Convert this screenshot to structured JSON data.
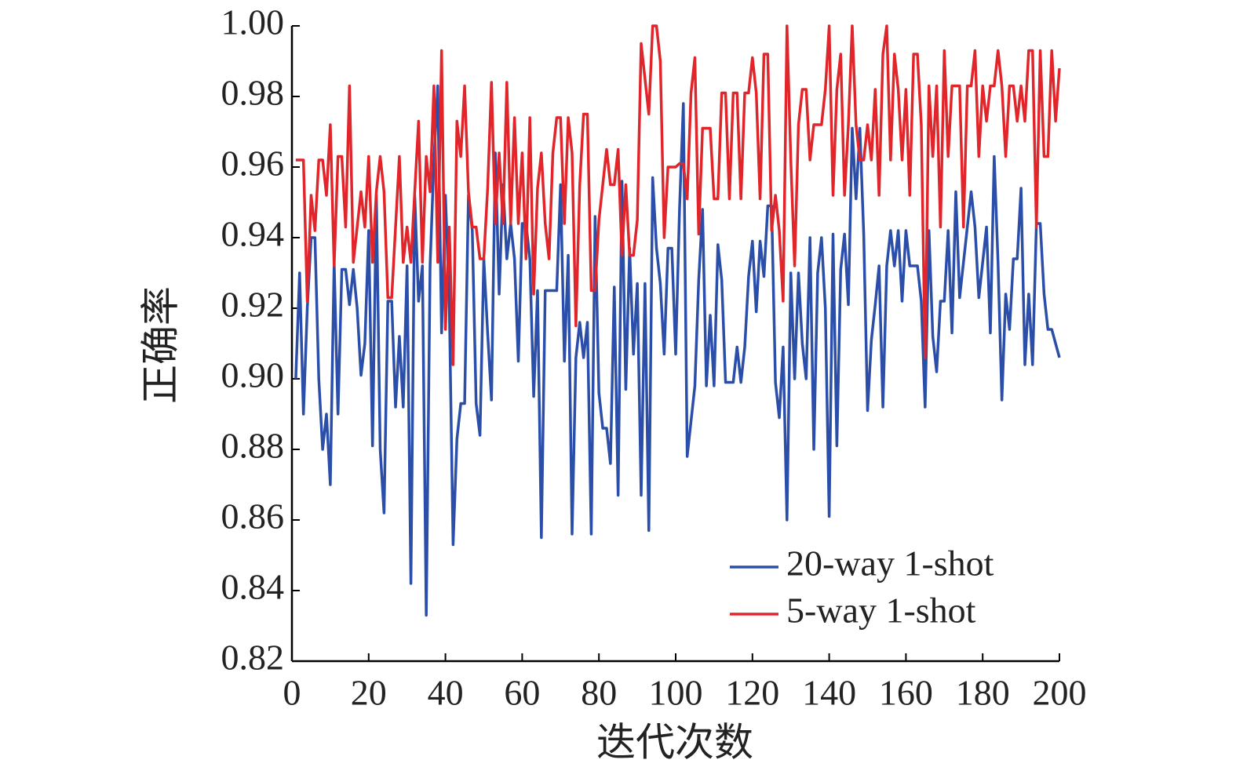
{
  "chart_data": {
    "type": "line",
    "xlabel": "迭代次数",
    "ylabel": "正确率",
    "xlim": [
      0,
      200
    ],
    "ylim": [
      0.82,
      1.0
    ],
    "xticks": [
      0,
      20,
      40,
      60,
      80,
      100,
      120,
      140,
      160,
      180,
      200
    ],
    "yticks": [
      {
        "value": 0.82,
        "label": "0.82"
      },
      {
        "value": 0.84,
        "label": "0.84"
      },
      {
        "value": 0.86,
        "label": "0.86"
      },
      {
        "value": 0.88,
        "label": "0.88"
      },
      {
        "value": 0.9,
        "label": "0.90"
      },
      {
        "value": 0.92,
        "label": "0.92"
      },
      {
        "value": 0.94,
        "label": "0.94"
      },
      {
        "value": 0.96,
        "label": "0.96"
      },
      {
        "value": 0.98,
        "label": "0.98"
      },
      {
        "value": 1.0,
        "label": "1.00"
      }
    ],
    "legend": "lower right",
    "grid": false,
    "x": [
      1,
      2,
      3,
      4,
      5,
      6,
      7,
      8,
      9,
      10,
      11,
      12,
      13,
      14,
      15,
      16,
      17,
      18,
      19,
      20,
      21,
      22,
      23,
      24,
      25,
      26,
      27,
      28,
      29,
      30,
      31,
      32,
      33,
      34,
      35,
      36,
      37,
      38,
      39,
      40,
      41,
      42,
      43,
      44,
      45,
      46,
      47,
      48,
      49,
      50,
      51,
      52,
      53,
      54,
      55,
      56,
      57,
      58,
      59,
      60,
      61,
      62,
      63,
      64,
      65,
      66,
      67,
      68,
      69,
      70,
      71,
      72,
      73,
      74,
      75,
      76,
      77,
      78,
      79,
      80,
      81,
      82,
      83,
      84,
      85,
      86,
      87,
      88,
      89,
      90,
      91,
      92,
      93,
      94,
      95,
      96,
      97,
      98,
      99,
      100,
      101,
      102,
      103,
      104,
      105,
      106,
      107,
      108,
      109,
      110,
      111,
      112,
      113,
      114,
      115,
      116,
      117,
      118,
      119,
      120,
      121,
      122,
      123,
      124,
      125,
      126,
      127,
      128,
      129,
      130,
      131,
      132,
      133,
      134,
      135,
      136,
      137,
      138,
      139,
      140,
      141,
      142,
      143,
      144,
      145,
      146,
      147,
      148,
      149,
      150,
      151,
      152,
      153,
      154,
      155,
      156,
      157,
      158,
      159,
      160,
      161,
      162,
      163,
      164,
      165,
      166,
      167,
      168,
      169,
      170,
      171,
      172,
      173,
      174,
      175,
      176,
      177,
      178,
      179,
      180,
      181,
      182,
      183,
      184,
      185,
      186,
      187,
      188,
      189,
      190,
      191,
      192,
      193,
      194,
      195,
      196,
      197,
      198,
      199,
      200
    ],
    "series": [
      {
        "name": "20-way 1-shot",
        "color": "#2b4ea8",
        "values": [
          0.9,
          0.93,
          0.89,
          0.92,
          0.94,
          0.94,
          0.9,
          0.88,
          0.89,
          0.87,
          0.933,
          0.89,
          0.931,
          0.931,
          0.921,
          0.931,
          0.92,
          0.901,
          0.91,
          0.942,
          0.881,
          0.952,
          0.88,
          0.862,
          0.922,
          0.922,
          0.892,
          0.912,
          0.892,
          0.932,
          0.842,
          0.952,
          0.922,
          0.932,
          0.833,
          0.932,
          0.962,
          0.983,
          0.913,
          0.952,
          0.922,
          0.853,
          0.883,
          0.893,
          0.893,
          0.952,
          0.942,
          0.893,
          0.884,
          0.934,
          0.913,
          0.894,
          0.964,
          0.924,
          0.955,
          0.934,
          0.944,
          0.934,
          0.905,
          0.944,
          0.944,
          0.934,
          0.895,
          0.925,
          0.855,
          0.925,
          0.925,
          0.925,
          0.925,
          0.955,
          0.905,
          0.935,
          0.856,
          0.906,
          0.916,
          0.906,
          0.916,
          0.856,
          0.946,
          0.896,
          0.886,
          0.886,
          0.876,
          0.926,
          0.867,
          0.956,
          0.897,
          0.937,
          0.907,
          0.927,
          0.867,
          0.927,
          0.857,
          0.957,
          0.937,
          0.927,
          0.907,
          0.937,
          0.937,
          0.907,
          0.948,
          0.978,
          0.878,
          0.888,
          0.898,
          0.928,
          0.948,
          0.898,
          0.918,
          0.898,
          0.938,
          0.928,
          0.899,
          0.899,
          0.899,
          0.909,
          0.899,
          0.909,
          0.929,
          0.939,
          0.919,
          0.939,
          0.929,
          0.949,
          0.949,
          0.899,
          0.889,
          0.909,
          0.86,
          0.93,
          0.9,
          0.93,
          0.91,
          0.9,
          0.94,
          0.88,
          0.93,
          0.94,
          0.92,
          0.861,
          0.941,
          0.881,
          0.931,
          0.941,
          0.921,
          0.971,
          0.951,
          0.971,
          0.941,
          0.891,
          0.911,
          0.921,
          0.932,
          0.892,
          0.932,
          0.942,
          0.932,
          0.942,
          0.922,
          0.942,
          0.932,
          0.932,
          0.932,
          0.922,
          0.892,
          0.942,
          0.912,
          0.902,
          0.922,
          0.922,
          0.942,
          0.913,
          0.953,
          0.923,
          0.933,
          0.943,
          0.953,
          0.943,
          0.923,
          0.933,
          0.943,
          0.913,
          0.963,
          0.933,
          0.894,
          0.924,
          0.914,
          0.934,
          0.934,
          0.954,
          0.904,
          0.924,
          0.904,
          0.944,
          0.944,
          0.924,
          0.914,
          0.914,
          0.91,
          0.906
        ]
      },
      {
        "name": "5-way 1-shot",
        "color": "#e0262b",
        "values": [
          0.962,
          0.962,
          0.962,
          0.922,
          0.952,
          0.942,
          0.962,
          0.962,
          0.952,
          0.972,
          0.932,
          0.963,
          0.963,
          0.943,
          0.983,
          0.933,
          0.943,
          0.953,
          0.943,
          0.963,
          0.933,
          0.953,
          0.963,
          0.953,
          0.923,
          0.923,
          0.943,
          0.963,
          0.933,
          0.943,
          0.933,
          0.953,
          0.973,
          0.933,
          0.963,
          0.953,
          0.983,
          0.933,
          0.993,
          0.914,
          0.943,
          0.904,
          0.973,
          0.963,
          0.983,
          0.953,
          0.943,
          0.943,
          0.934,
          0.934,
          0.954,
          0.984,
          0.944,
          0.964,
          0.944,
          0.984,
          0.944,
          0.974,
          0.944,
          0.964,
          0.934,
          0.974,
          0.924,
          0.954,
          0.964,
          0.944,
          0.934,
          0.964,
          0.974,
          0.974,
          0.944,
          0.974,
          0.964,
          0.915,
          0.955,
          0.975,
          0.975,
          0.925,
          0.925,
          0.945,
          0.955,
          0.965,
          0.955,
          0.955,
          0.965,
          0.935,
          0.955,
          0.935,
          0.935,
          0.945,
          0.995,
          0.985,
          0.975,
          1.0,
          1.0,
          0.99,
          0.94,
          0.96,
          0.96,
          0.96,
          0.961,
          0.961,
          0.951,
          0.981,
          0.991,
          0.941,
          0.971,
          0.971,
          0.971,
          0.951,
          0.951,
          0.981,
          0.981,
          0.951,
          0.981,
          0.981,
          0.951,
          0.981,
          0.981,
          0.991,
          0.981,
          0.951,
          0.992,
          0.992,
          0.942,
          0.952,
          0.942,
          0.922,
          1.0,
          0.962,
          0.932,
          0.972,
          0.982,
          0.982,
          0.962,
          0.972,
          0.972,
          0.972,
          0.982,
          1.0,
          0.952,
          0.982,
          0.992,
          0.952,
          0.972,
          1.0,
          0.972,
          0.962,
          0.962,
          0.972,
          0.962,
          0.982,
          0.952,
          0.992,
          1.0,
          0.962,
          0.992,
          0.982,
          0.962,
          0.982,
          0.952,
          0.992,
          0.992,
          0.972,
          0.906,
          0.983,
          0.963,
          0.983,
          0.943,
          0.993,
          0.963,
          0.983,
          0.983,
          0.983,
          0.943,
          0.983,
          0.983,
          0.993,
          0.963,
          0.983,
          0.973,
          0.983,
          0.983,
          0.993,
          0.983,
          0.963,
          0.983,
          0.983,
          0.973,
          0.983,
          0.973,
          0.993,
          0.993,
          0.943,
          0.993,
          0.963,
          0.963,
          0.993,
          0.973,
          0.988
        ]
      }
    ]
  }
}
